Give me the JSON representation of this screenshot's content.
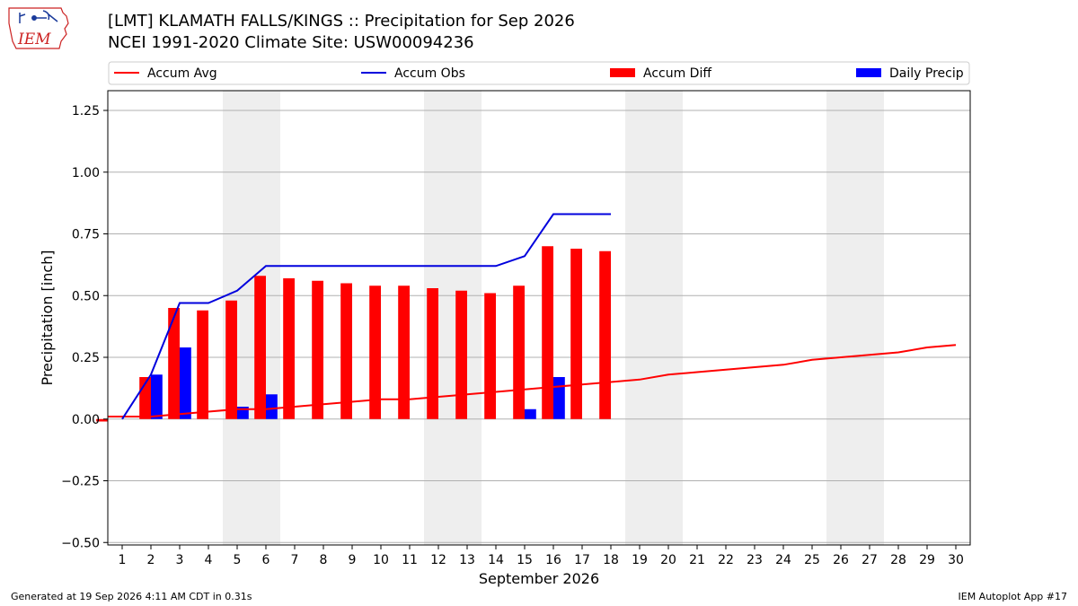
{
  "header": {
    "logo_text": "IEM",
    "title_line1": "[LMT] KLAMATH FALLS/KINGS :: Precipitation for Sep 2026",
    "title_line2": "NCEI 1991-2020 Climate Site: USW00094236"
  },
  "footer": {
    "generated": "Generated at 19 Sep 2026 4:11 AM CDT in 0.31s",
    "app": "IEM Autoplot App #17"
  },
  "colors": {
    "avg": "#ff0000",
    "obs": "#0000dd",
    "diff": "#ff0000",
    "daily": "#0000ff",
    "weekend_shade": "#eeeeee",
    "grid": "#b0b0b0"
  },
  "chart_data": {
    "type": "bar",
    "xlabel": "September 2026",
    "ylabel": "Precipitation [inch]",
    "xlim": [
      0.5,
      30.5
    ],
    "ylim": [
      -0.51,
      1.33
    ],
    "yticks": [
      -0.5,
      -0.25,
      0.0,
      0.25,
      0.5,
      0.75,
      1.0,
      1.25
    ],
    "ytick_labels": [
      "−0.50",
      "−0.25",
      "0.00",
      "0.25",
      "0.50",
      "0.75",
      "1.00",
      "1.25"
    ],
    "xticks": [
      1,
      2,
      3,
      4,
      5,
      6,
      7,
      8,
      9,
      10,
      11,
      12,
      13,
      14,
      15,
      16,
      17,
      18,
      19,
      20,
      21,
      22,
      23,
      24,
      25,
      26,
      27,
      28,
      29,
      30
    ],
    "grid": "horizontal",
    "shaded_weekends": [
      [
        4.5,
        6.5
      ],
      [
        11.5,
        13.5
      ],
      [
        18.5,
        20.5
      ],
      [
        25.5,
        27.5
      ]
    ],
    "legend": {
      "placement": "top",
      "entries": [
        {
          "label": "Accum Avg",
          "kind": "line",
          "color": "#ff0000"
        },
        {
          "label": "Accum Obs",
          "kind": "line",
          "color": "#0000dd"
        },
        {
          "label": "Accum Diff",
          "kind": "bar",
          "color": "#ff0000"
        },
        {
          "label": "Daily Precip",
          "kind": "bar",
          "color": "#0000ff"
        }
      ]
    },
    "series": [
      {
        "name": "Accum Avg",
        "type": "line",
        "x": [
          0.5,
          1,
          2,
          3,
          4,
          5,
          6,
          7,
          8,
          9,
          10,
          11,
          12,
          13,
          14,
          15,
          16,
          17,
          18,
          19,
          20,
          21,
          22,
          23,
          24,
          25,
          26,
          27,
          28,
          29,
          30
        ],
        "values": [
          0.01,
          0.01,
          0.01,
          0.02,
          0.03,
          0.04,
          0.04,
          0.05,
          0.06,
          0.07,
          0.08,
          0.08,
          0.09,
          0.1,
          0.11,
          0.12,
          0.13,
          0.14,
          0.15,
          0.16,
          0.18,
          0.19,
          0.2,
          0.21,
          0.22,
          0.24,
          0.25,
          0.26,
          0.27,
          0.29,
          0.3
        ]
      },
      {
        "name": "Accum Obs",
        "type": "line",
        "x": [
          1,
          2,
          3,
          4,
          5,
          6,
          7,
          8,
          9,
          10,
          11,
          12,
          13,
          14,
          15,
          16,
          17,
          18
        ],
        "values": [
          0.0,
          0.18,
          0.47,
          0.47,
          0.52,
          0.62,
          0.62,
          0.62,
          0.62,
          0.62,
          0.62,
          0.62,
          0.62,
          0.62,
          0.66,
          0.83,
          0.83,
          0.83
        ]
      },
      {
        "name": "Accum Diff",
        "type": "bar",
        "x": [
          0.5,
          2,
          3,
          4,
          5,
          6,
          7,
          8,
          9,
          10,
          11,
          12,
          13,
          14,
          15,
          16,
          17,
          18
        ],
        "values": [
          -0.01,
          0.17,
          0.45,
          0.44,
          0.48,
          0.58,
          0.57,
          0.56,
          0.55,
          0.54,
          0.54,
          0.53,
          0.52,
          0.51,
          0.54,
          0.7,
          0.69,
          0.68
        ]
      },
      {
        "name": "Daily Precip",
        "type": "bar",
        "x": [
          2,
          3,
          5,
          6,
          15,
          16
        ],
        "values": [
          0.18,
          0.29,
          0.05,
          0.1,
          0.04,
          0.17
        ]
      }
    ]
  }
}
